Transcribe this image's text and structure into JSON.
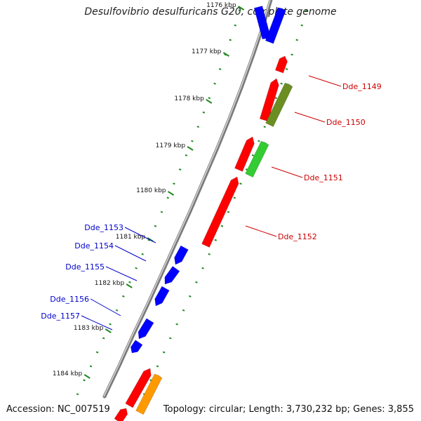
{
  "title": "Desulfovibrio desulfuricans G20, complete genome",
  "footer": {
    "accession": "Accession: NC_007519",
    "topology": "Topology: circular; Length: 3,730,232 bp; Genes: 3,855"
  },
  "colors": {
    "backbone": "#7a7a7a",
    "tick": "#1e8a1e",
    "forward_label": "#cc0000",
    "reverse_label": "#0000cc",
    "forward_cds": "#ff0000",
    "reverse_cds": "#0000ff",
    "feature_olive": "#6b8e23",
    "feature_green": "#33cc33",
    "feature_orange": "#ff9900"
  },
  "kbp_ticks": [
    "1176 kbp",
    "1177 kbp",
    "1178 kbp",
    "1179 kbp",
    "1180 kbp",
    "1181 kbp",
    "1182 kbp",
    "1183 kbp",
    "1184 kbp"
  ],
  "forward_genes": [
    "Dde_1149",
    "Dde_1150",
    "Dde_1151",
    "Dde_1152"
  ],
  "reverse_genes": [
    "Dde_1153",
    "Dde_1154",
    "Dde_1155",
    "Dde_1156",
    "Dde_1157"
  ]
}
